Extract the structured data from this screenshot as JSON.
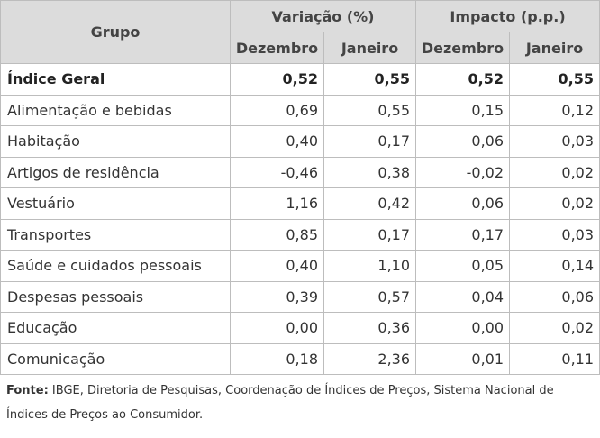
{
  "header": {
    "group": "Grupo",
    "variation": "Variação (%)",
    "impact": "Impacto (p.p.)",
    "dec": "Dezembro",
    "jan": "Janeiro"
  },
  "rows": [
    {
      "label": "Índice Geral",
      "var_dec": "0,52",
      "var_jan": "0,55",
      "imp_dec": "0,52",
      "imp_jan": "0,55"
    },
    {
      "label": "Alimentação e bebidas",
      "var_dec": "0,69",
      "var_jan": "0,55",
      "imp_dec": "0,15",
      "imp_jan": "0,12"
    },
    {
      "label": "Habitação",
      "var_dec": "0,40",
      "var_jan": "0,17",
      "imp_dec": "0,06",
      "imp_jan": "0,03"
    },
    {
      "label": "Artigos de residência",
      "var_dec": "-0,46",
      "var_jan": "0,38",
      "imp_dec": "-0,02",
      "imp_jan": "0,02"
    },
    {
      "label": "Vestuário",
      "var_dec": "1,16",
      "var_jan": "0,42",
      "imp_dec": "0,06",
      "imp_jan": "0,02"
    },
    {
      "label": "Transportes",
      "var_dec": "0,85",
      "var_jan": "0,17",
      "imp_dec": "0,17",
      "imp_jan": "0,03"
    },
    {
      "label": "Saúde e cuidados pessoais",
      "var_dec": "0,40",
      "var_jan": "1,10",
      "imp_dec": "0,05",
      "imp_jan": "0,14"
    },
    {
      "label": "Despesas pessoais",
      "var_dec": "0,39",
      "var_jan": "0,57",
      "imp_dec": "0,04",
      "imp_jan": "0,06"
    },
    {
      "label": "Educação",
      "var_dec": "0,00",
      "var_jan": "0,36",
      "imp_dec": "0,00",
      "imp_jan": "0,02"
    },
    {
      "label": "Comunicação",
      "var_dec": "0,18",
      "var_jan": "2,36",
      "imp_dec": "0,01",
      "imp_jan": "0,11"
    }
  ],
  "footnote": {
    "label": "Fonte:",
    "text": " IBGE, Diretoria de Pesquisas, Coordenação de Índices de Preços, Sistema Nacional de Índices de Preços ao Consumidor."
  }
}
